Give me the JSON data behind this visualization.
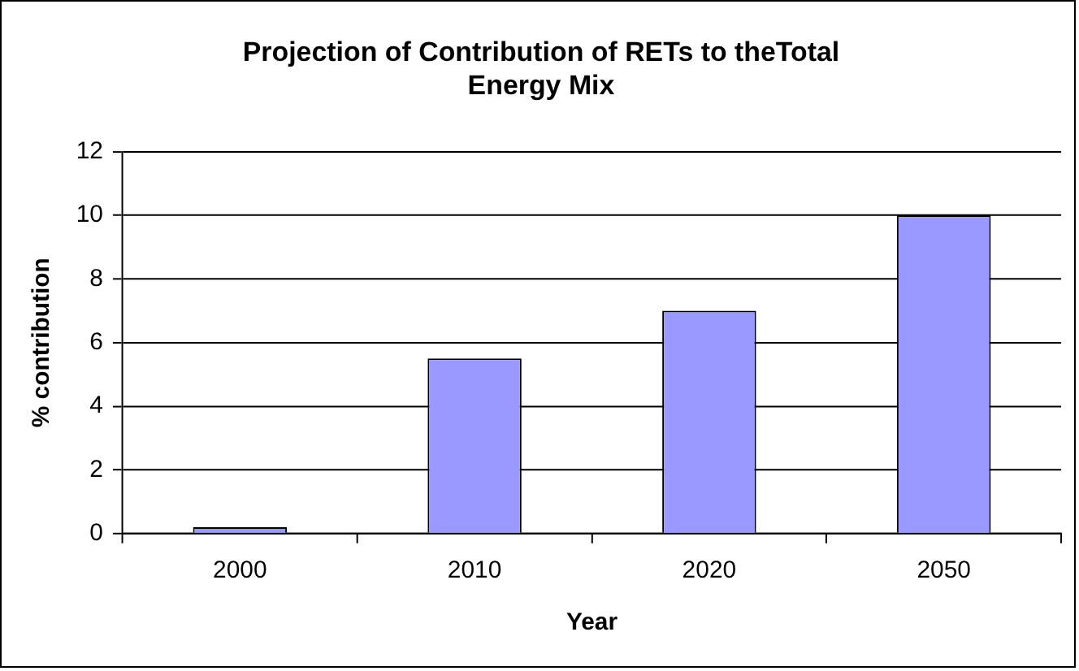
{
  "chart_data": {
    "type": "bar",
    "title": "Projection of Contribution of RETs to theTotal Energy Mix",
    "xlabel": "Year",
    "ylabel": "% contribution",
    "categories": [
      "2000",
      "2010",
      "2020",
      "2050"
    ],
    "values": [
      0.2,
      5.5,
      7,
      10
    ],
    "color": "#9999ff",
    "ylim": [
      0,
      12
    ],
    "yticks": [
      0,
      2,
      4,
      6,
      8,
      10,
      12
    ],
    "grid": "y",
    "legend": false
  }
}
